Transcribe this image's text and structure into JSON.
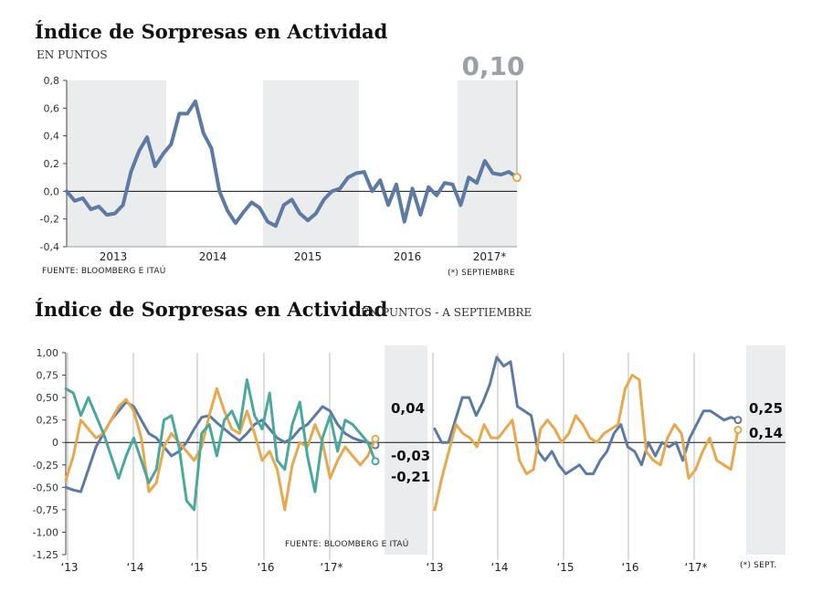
{
  "colors": {
    "blue": "#5b7aa6",
    "orange": "#e8a84c",
    "teal": "#4aa89c",
    "dark": "#4a5563",
    "shade": "#ebecee"
  },
  "chart_data": [
    {
      "type": "line",
      "title": "Índice de Sorpresas en Actividad",
      "subtitle": "EN PUNTOS",
      "source": "FUENTE: BLOOMBERG E ITAÚ",
      "note": "(*) SEPTIEMBRE",
      "highlight_value": "0,10",
      "ylim": [
        -0.4,
        0.8
      ],
      "yticks": [
        -0.4,
        -0.2,
        0.0,
        0.2,
        0.4,
        0.6,
        0.8
      ],
      "ytick_labels": [
        "-0,4",
        "-0,2",
        "0,0",
        "0,2",
        "0,4",
        "0,6",
        "0,8"
      ],
      "x_labels": [
        "2013",
        "2014",
        "2015",
        "2016",
        "2017*"
      ],
      "grid": false,
      "series": [
        {
          "color": "#5b7aa6",
          "values": [
            0.0,
            -0.07,
            -0.05,
            -0.13,
            -0.11,
            -0.17,
            -0.16,
            -0.1,
            0.14,
            0.29,
            0.39,
            0.18,
            0.27,
            0.34,
            0.56,
            0.56,
            0.65,
            0.42,
            0.31,
            0.0,
            -0.14,
            -0.23,
            -0.15,
            -0.08,
            -0.12,
            -0.22,
            -0.25,
            -0.1,
            -0.06,
            -0.16,
            -0.21,
            -0.16,
            -0.06,
            0.0,
            0.02,
            0.1,
            0.13,
            0.14,
            0.0,
            0.08,
            -0.1,
            0.05,
            -0.22,
            0.02,
            -0.17,
            0.03,
            -0.03,
            0.06,
            0.05,
            -0.1,
            0.1,
            0.06,
            0.22,
            0.13,
            0.12,
            0.14,
            0.1
          ]
        }
      ]
    },
    {
      "type": "line",
      "title": "Índice de Sorpresas en Actividad",
      "subtitle": "EN PUNTOS - A SEPTIEMBRE",
      "source": "FUENTE: BLOOMBERG E ITAÚ",
      "note": "(*) SEPT.",
      "ylim": [
        -1.25,
        1.0
      ],
      "yticks": [
        1.0,
        0.75,
        0.5,
        0.25,
        0.0,
        -0.25,
        -0.5,
        -0.75,
        -1.0,
        -1.25
      ],
      "ytick_labels": [
        "1,00",
        "0,75",
        "0,50",
        "0,25",
        "0",
        "-0,25",
        "-0,50",
        "-0,75",
        "-1,00",
        "-1,25"
      ],
      "x_labels": [
        "‘13",
        "‘14",
        "‘15",
        "‘16",
        "‘17*"
      ],
      "panels": [
        {
          "series": [
            {
              "color": "#5b7aa6",
              "end_label": "-0,03",
              "values": [
                -0.5,
                -0.53,
                -0.55,
                -0.3,
                -0.05,
                0.1,
                0.25,
                0.35,
                0.45,
                0.4,
                0.25,
                0.1,
                0.05,
                -0.05,
                -0.15,
                -0.1,
                0.0,
                0.15,
                0.28,
                0.3,
                0.22,
                0.15,
                0.08,
                0.02,
                0.1,
                0.2,
                0.25,
                0.15,
                0.05,
                0.0,
                0.05,
                0.15,
                0.2,
                0.3,
                0.4,
                0.35,
                0.2,
                0.1,
                0.05,
                0.02,
                0.0,
                -0.03
              ]
            },
            {
              "color": "#e8a84c",
              "end_label": "0,04",
              "values": [
                -0.42,
                -0.15,
                0.25,
                0.15,
                0.05,
                0.1,
                0.25,
                0.4,
                0.48,
                0.35,
                0.05,
                -0.55,
                -0.45,
                -0.05,
                0.1,
                0.0,
                -0.1,
                -0.2,
                -0.05,
                0.3,
                0.6,
                0.35,
                0.15,
                0.1,
                0.35,
                0.1,
                -0.2,
                -0.1,
                -0.3,
                -0.75,
                -0.25,
                0.0,
                -0.05,
                0.2,
                0.0,
                -0.4,
                -0.2,
                -0.05,
                -0.15,
                -0.25,
                -0.15,
                0.04
              ]
            },
            {
              "color": "#4aa89c",
              "end_label": "-0,21",
              "values": [
                0.6,
                0.55,
                0.3,
                0.5,
                0.3,
                0.1,
                -0.15,
                -0.4,
                -0.15,
                0.05,
                -0.2,
                -0.45,
                -0.3,
                0.25,
                0.3,
                -0.05,
                -0.65,
                -0.75,
                0.1,
                0.2,
                -0.15,
                0.25,
                0.35,
                0.15,
                0.7,
                0.3,
                0.15,
                0.55,
                -0.2,
                -0.3,
                0.2,
                0.45,
                -0.15,
                -0.55,
                0.05,
                0.3,
                -0.1,
                0.25,
                0.2,
                0.1,
                0.0,
                -0.21
              ]
            }
          ]
        },
        {
          "series": [
            {
              "color": "#5b7aa6",
              "end_label": "0,25",
              "values": [
                0.15,
                0.0,
                0.0,
                0.25,
                0.5,
                0.5,
                0.3,
                0.45,
                0.65,
                0.95,
                0.85,
                0.9,
                0.4,
                0.35,
                0.3,
                -0.1,
                -0.2,
                -0.1,
                -0.25,
                -0.35,
                -0.3,
                -0.25,
                -0.35,
                -0.35,
                -0.2,
                -0.1,
                0.1,
                0.2,
                -0.05,
                -0.1,
                -0.25,
                0.0,
                -0.15,
                0.0,
                -0.05,
                0.0,
                -0.2,
                0.05,
                0.2,
                0.35,
                0.35,
                0.3,
                0.25,
                0.28,
                0.25
              ]
            },
            {
              "color": "#e8a84c",
              "end_label": "0,14",
              "values": [
                -0.75,
                -0.4,
                -0.1,
                0.2,
                0.1,
                0.05,
                -0.05,
                0.2,
                0.05,
                0.05,
                0.15,
                0.25,
                -0.2,
                -0.35,
                -0.3,
                0.15,
                0.25,
                0.15,
                0.0,
                0.1,
                0.3,
                0.2,
                0.05,
                0.0,
                0.1,
                0.15,
                0.2,
                0.6,
                0.75,
                0.7,
                -0.1,
                -0.2,
                -0.25,
                0.05,
                0.2,
                0.1,
                -0.4,
                -0.3,
                -0.1,
                0.05,
                -0.2,
                -0.25,
                -0.3,
                0.14
              ]
            }
          ]
        }
      ]
    }
  ]
}
